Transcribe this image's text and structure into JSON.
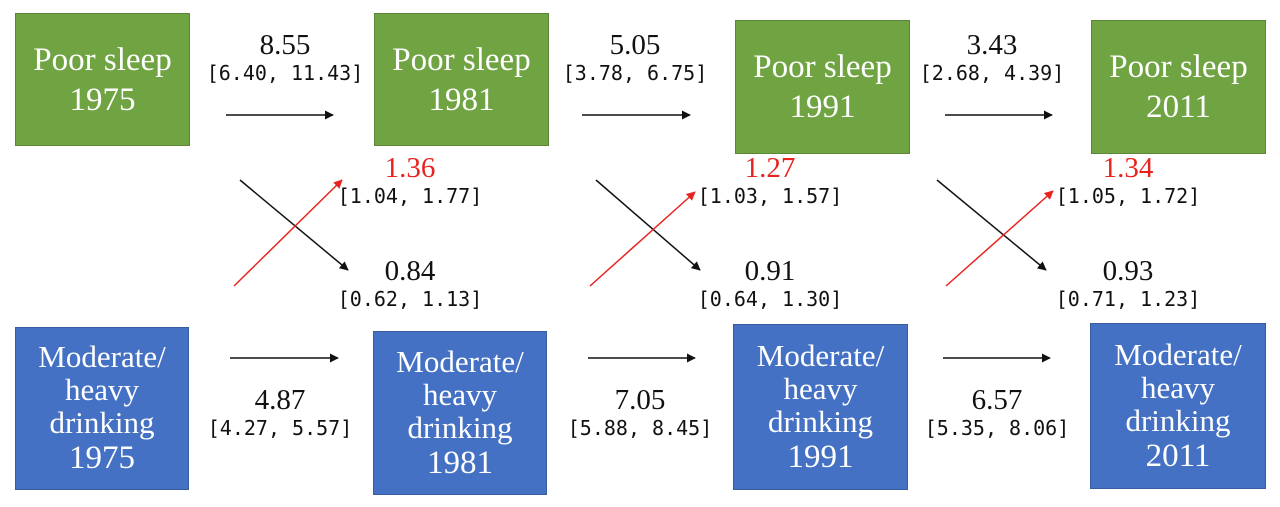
{
  "sleep_boxes": [
    {
      "label": "Poor sleep",
      "year": "1975"
    },
    {
      "label": "Poor sleep",
      "year": "1981"
    },
    {
      "label": "Poor sleep",
      "year": "1991"
    },
    {
      "label": "Poor sleep",
      "year": "2011"
    }
  ],
  "drinking_boxes": [
    {
      "line1": "Moderate/",
      "line2": "heavy",
      "line3": "drinking",
      "year": "1975"
    },
    {
      "line1": "Moderate/",
      "line2": "heavy",
      "line3": "drinking",
      "year": "1981"
    },
    {
      "line1": "Moderate/",
      "line2": "heavy",
      "line3": "drinking",
      "year": "1991"
    },
    {
      "line1": "Moderate/",
      "line2": "heavy",
      "line3": "drinking",
      "year": "2011"
    }
  ],
  "sleep_paths": [
    {
      "value": "8.55",
      "ci": "[6.40, 11.43]"
    },
    {
      "value": "5.05",
      "ci": "[3.78, 6.75]"
    },
    {
      "value": "3.43",
      "ci": "[2.68, 4.39]"
    }
  ],
  "drinking_paths": [
    {
      "value": "4.87",
      "ci": "[4.27, 5.57]"
    },
    {
      "value": "7.05",
      "ci": "[5.88, 8.45]"
    },
    {
      "value": "6.57",
      "ci": "[5.35, 8.06]"
    }
  ],
  "drinking_to_sleep": [
    {
      "value": "1.36",
      "ci": "[1.04, 1.77]"
    },
    {
      "value": "1.27",
      "ci": "[1.03, 1.57]"
    },
    {
      "value": "1.34",
      "ci": "[1.05, 1.72]"
    }
  ],
  "sleep_to_drinking": [
    {
      "value": "0.84",
      "ci": "[0.62, 1.13]"
    },
    {
      "value": "0.91",
      "ci": "[0.64, 1.30]"
    },
    {
      "value": "0.93",
      "ci": "[0.71, 1.23]"
    }
  ],
  "colors": {
    "sleep_box": "#70a443",
    "drinking_box": "#4471c4",
    "cross_effect_highlight": "#e8231f",
    "arrow_default": "#111111"
  }
}
